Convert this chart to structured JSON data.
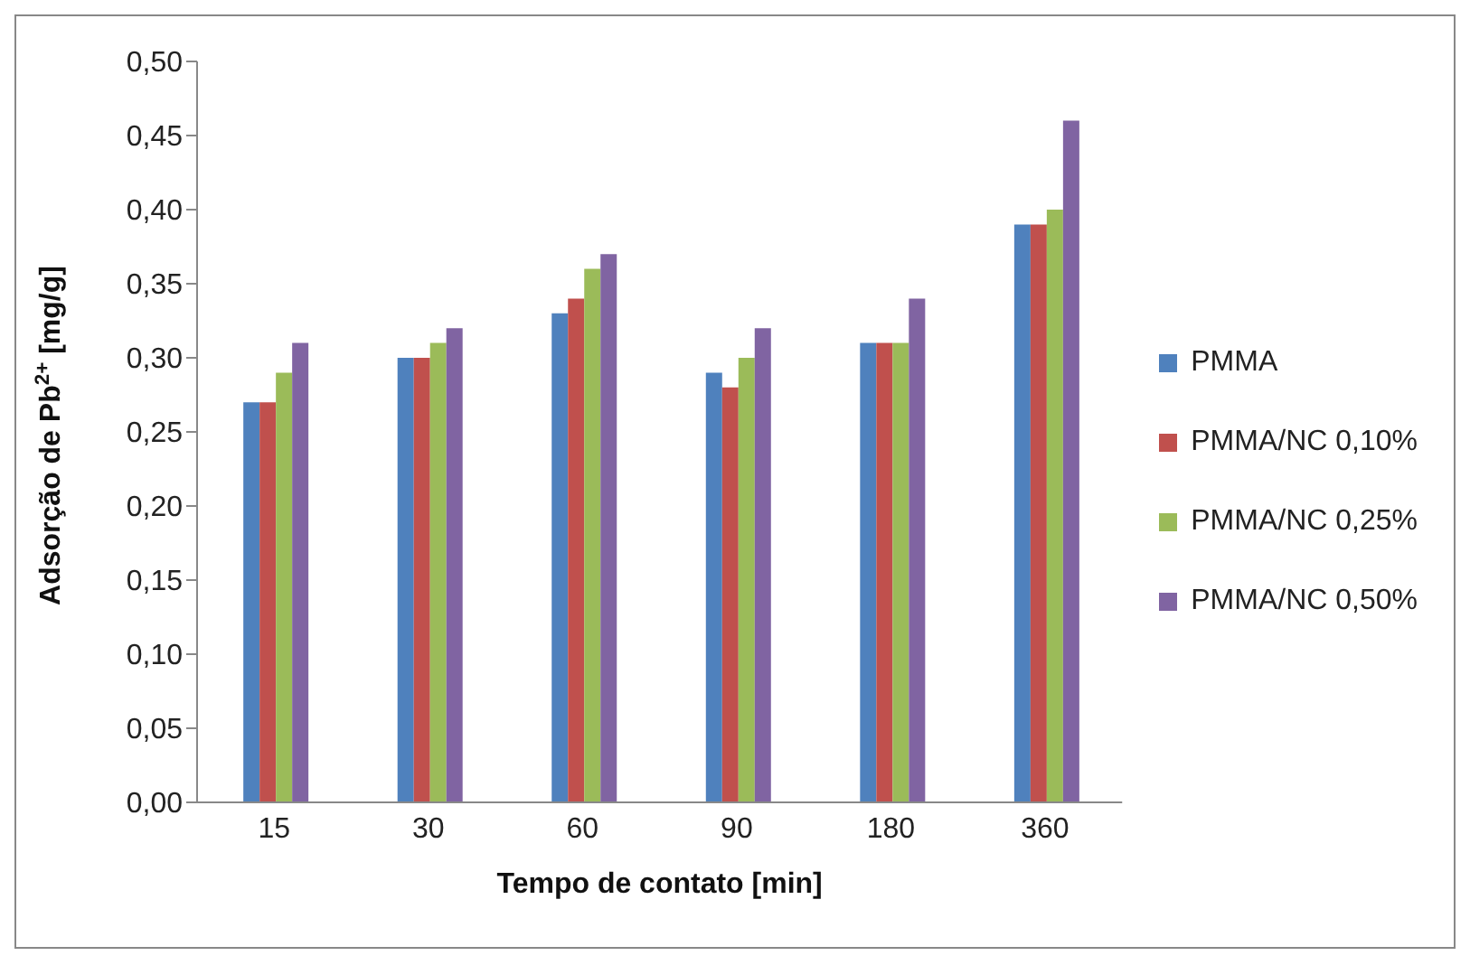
{
  "chart_data": {
    "type": "bar",
    "xlabel": "Tempo de contato [min]",
    "ylabel": "Adsorção de Pb$^{2+}$ [mg/g]",
    "categories": [
      "15",
      "30",
      "60",
      "90",
      "180",
      "360"
    ],
    "series": [
      {
        "name": "PMMA",
        "color": "#4f81bd",
        "values": [
          0.27,
          0.3,
          0.33,
          0.29,
          0.31,
          0.39
        ]
      },
      {
        "name": "PMMA/NC 0,10%",
        "color": "#c0504d",
        "values": [
          0.27,
          0.3,
          0.34,
          0.28,
          0.31,
          0.39
        ]
      },
      {
        "name": "PMMA/NC 0,25%",
        "color": "#9bbb59",
        "values": [
          0.29,
          0.31,
          0.36,
          0.3,
          0.31,
          0.4
        ]
      },
      {
        "name": "PMMA/NC 0,50%",
        "color": "#8064a2",
        "values": [
          0.31,
          0.32,
          0.37,
          0.32,
          0.34,
          0.46
        ]
      }
    ],
    "ylim": [
      0,
      0.5
    ],
    "yticks": [
      {
        "value": 0,
        "label": "0,00"
      },
      {
        "value": 0.05,
        "label": "0,05"
      },
      {
        "value": 0.1,
        "label": "0,10"
      },
      {
        "value": 0.15,
        "label": "0,15"
      },
      {
        "value": 0.2,
        "label": "0,20"
      },
      {
        "value": 0.25,
        "label": "0,25"
      },
      {
        "value": 0.3,
        "label": "0,30"
      },
      {
        "value": 0.35,
        "label": "0,35"
      },
      {
        "value": 0.4,
        "label": "0,40"
      },
      {
        "value": 0.45,
        "label": "0,45"
      },
      {
        "value": 0.5,
        "label": "0,50"
      }
    ],
    "grid": false,
    "legend": "right"
  }
}
